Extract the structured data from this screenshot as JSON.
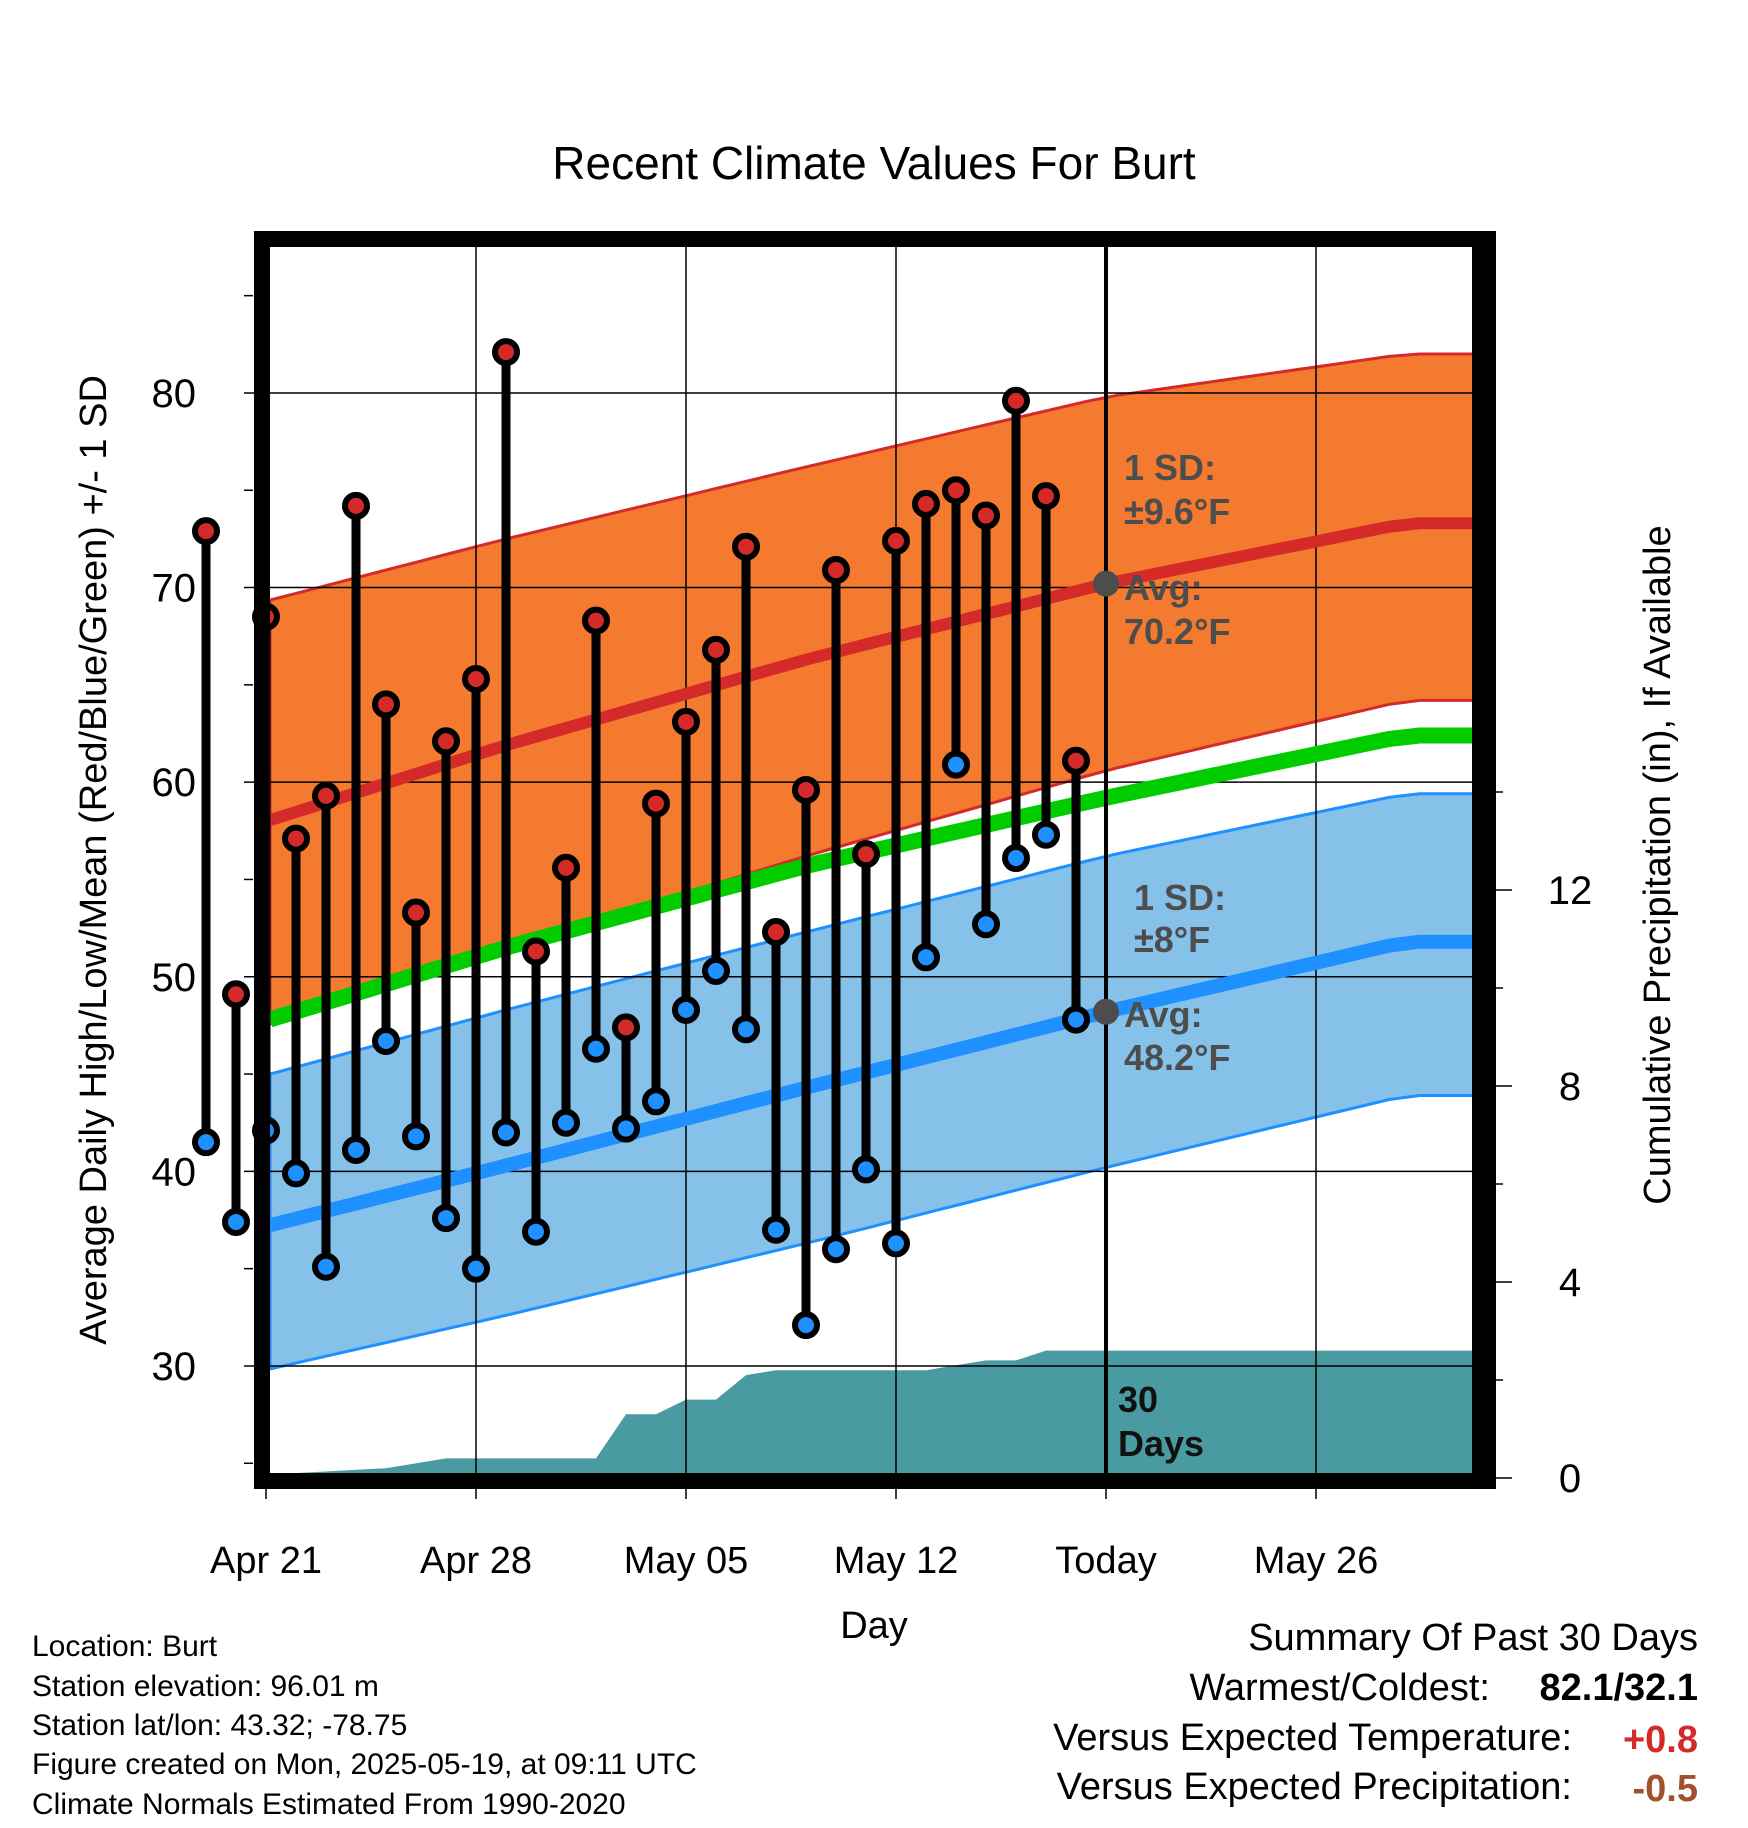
{
  "chart_data": {
    "type": "line",
    "title": "Recent Climate Values For Burt",
    "xlabel": "Day",
    "ylabel": "Average Daily High/Low/Mean (Red/Blue/Green) +/- 1 SD",
    "y2label": "Cumulative Precipitation (in), If Available",
    "x_tick_labels": [
      "Apr 21",
      "Apr 28",
      "May 05",
      "May 12",
      "Today",
      "May 26"
    ],
    "x_tick_days": [
      2,
      9,
      16,
      23,
      30,
      37
    ],
    "xlim_days": [
      0,
      40
    ],
    "ylim": [
      24.5,
      87.5
    ],
    "y_ticks": [
      30,
      40,
      50,
      60,
      70,
      80
    ],
    "y2lim": [
      0,
      30
    ],
    "y2_ticks": [
      0,
      4,
      8,
      12
    ],
    "grid": true,
    "today_day": 30,
    "today_label_lines": [
      "30",
      "Days"
    ],
    "observed_days": [
      0,
      1,
      2,
      3,
      4,
      5,
      6,
      7,
      8,
      9,
      10,
      11,
      12,
      13,
      14,
      15,
      16,
      17,
      18,
      19,
      20,
      21,
      22,
      23,
      24,
      25,
      26,
      27,
      28,
      29
    ],
    "series": [
      {
        "name": "Daily High",
        "color": "#d42a2a",
        "values": [
          72.9,
          49.1,
          68.5,
          57.1,
          59.3,
          74.2,
          64.0,
          53.3,
          62.1,
          65.3,
          82.1,
          51.3,
          55.6,
          68.3,
          47.4,
          58.9,
          63.1,
          66.8,
          72.1,
          52.3,
          59.6,
          70.9,
          56.3,
          72.4,
          74.3,
          75.0,
          73.7,
          79.6,
          74.7,
          61.1
        ]
      },
      {
        "name": "Daily Low",
        "color": "#1e90ff",
        "values": [
          41.5,
          37.4,
          42.1,
          39.9,
          35.1,
          41.1,
          46.7,
          41.8,
          37.6,
          35.0,
          42.0,
          36.9,
          42.5,
          46.3,
          42.2,
          43.6,
          48.3,
          50.3,
          47.3,
          37.0,
          32.1,
          36.0,
          40.1,
          36.3,
          51.0,
          60.9,
          52.7,
          56.1,
          57.3,
          47.8
        ]
      }
    ],
    "normals": {
      "days": [
        0,
        10,
        20,
        30,
        40
      ],
      "high_mean": [
        57.0,
        61.9,
        66.3,
        70.2,
        73.3
      ],
      "high_upper": [
        68.5,
        72.5,
        76.2,
        79.8,
        82.0
      ],
      "high_lower": [
        46.5,
        51.5,
        56.2,
        60.6,
        64.2
      ],
      "mean": [
        46.8,
        51.5,
        55.7,
        59.2,
        62.4
      ],
      "low_mean": [
        36.4,
        40.3,
        44.3,
        48.2,
        51.8
      ],
      "low_upper": [
        44.1,
        48.3,
        52.3,
        56.2,
        59.4
      ],
      "low_lower": [
        29.1,
        32.6,
        36.3,
        40.2,
        43.9
      ],
      "high_color": "#d42a2a",
      "high_band_color": "#f47a30",
      "mean_color": "#00cc00",
      "low_color": "#1e90ff",
      "low_band_color": "#85c1e8"
    },
    "precipitation": {
      "color": "#4a9aa2",
      "days": [
        0,
        6,
        8,
        13,
        14,
        15,
        16,
        17,
        18,
        19,
        20,
        21,
        22,
        23,
        24,
        25,
        26,
        27,
        28,
        29,
        30,
        40
      ],
      "values": [
        0.0,
        0.2,
        0.4,
        0.4,
        1.3,
        1.3,
        1.6,
        1.6,
        2.1,
        2.2,
        2.2,
        2.2,
        2.2,
        2.2,
        2.2,
        2.3,
        2.4,
        2.4,
        2.6,
        2.6,
        2.6,
        2.6
      ]
    },
    "annotations": [
      {
        "key": "high_sd",
        "lines": [
          "1 SD:",
          "±9.6°F"
        ]
      },
      {
        "key": "high_avg",
        "lines": [
          "Avg:",
          "70.2°F"
        ],
        "value": 70.2
      },
      {
        "key": "low_sd",
        "lines": [
          "1 SD:",
          "±8°F"
        ]
      },
      {
        "key": "low_avg",
        "lines": [
          "Avg:",
          "48.2°F"
        ],
        "value": 48.2
      }
    ]
  },
  "info": {
    "location": "Location: Burt",
    "elevation": "Station elevation: 96.01 m",
    "latlon": "Station lat/lon: 43.32; -78.75",
    "created": "Figure created on Mon, 2025-05-19, at 09:11 UTC",
    "normals": "Climate Normals Estimated From 1990-2020"
  },
  "summary": {
    "heading": "Summary Of Past 30 Days",
    "warm_cold_label": "Warmest/Coldest:",
    "warm_cold_value": "82.1/32.1",
    "temp_label": "Versus Expected Temperature:",
    "temp_value": "+0.8",
    "temp_color": "#d42a2a",
    "precip_label": "Versus Expected Precipitation:",
    "precip_value": "-0.5",
    "precip_color": "#a0522d"
  }
}
